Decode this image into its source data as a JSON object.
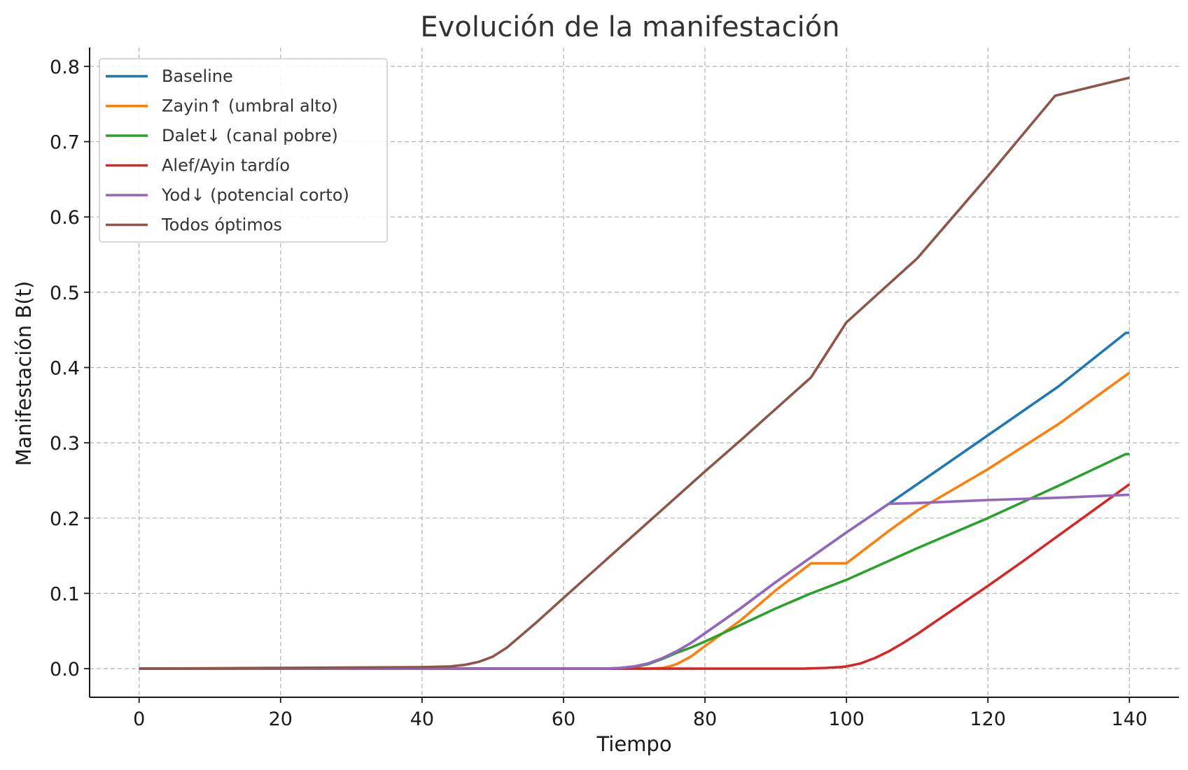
{
  "chart_data": {
    "type": "line",
    "title": "Evolución de la manifestación",
    "xlabel": "Tiempo",
    "ylabel": "Manifestación B(t)",
    "xlim": [
      -7,
      147
    ],
    "ylim": [
      -0.038,
      0.825
    ],
    "xticks": [
      0,
      20,
      40,
      60,
      80,
      100,
      120,
      140
    ],
    "yticks": [
      0.0,
      0.1,
      0.2,
      0.3,
      0.4,
      0.5,
      0.6,
      0.7,
      0.8
    ],
    "grid": true,
    "legend": "top-left",
    "series": [
      {
        "name": "Baseline",
        "color": "#1f77b4",
        "points": [
          [
            0,
            0
          ],
          [
            40,
            0
          ],
          [
            60,
            0
          ],
          [
            66,
            0
          ],
          [
            68,
            0.001
          ],
          [
            70,
            0.003
          ],
          [
            72,
            0.007
          ],
          [
            74,
            0.014
          ],
          [
            76,
            0.023
          ],
          [
            78,
            0.034
          ],
          [
            80,
            0.047
          ],
          [
            85,
            0.08
          ],
          [
            90,
            0.115
          ],
          [
            95,
            0.148
          ],
          [
            100,
            0.181
          ],
          [
            106,
            0.219
          ],
          [
            110,
            0.245
          ],
          [
            120,
            0.31
          ],
          [
            130,
            0.375
          ],
          [
            139.5,
            0.446
          ],
          [
            140,
            0.446
          ]
        ]
      },
      {
        "name": "Zayin↑ (umbral alto)",
        "color": "#ff7f0e",
        "points": [
          [
            0,
            0
          ],
          [
            60,
            0
          ],
          [
            72,
            0
          ],
          [
            74,
            0.001
          ],
          [
            75,
            0.003
          ],
          [
            76,
            0.006
          ],
          [
            78,
            0.016
          ],
          [
            80,
            0.03
          ],
          [
            85,
            0.064
          ],
          [
            90,
            0.104
          ],
          [
            95,
            0.14
          ],
          [
            100,
            0.14
          ],
          [
            100,
            0.14
          ],
          [
            106,
            0.183
          ],
          [
            110,
            0.21
          ],
          [
            120,
            0.265
          ],
          [
            130,
            0.325
          ],
          [
            140,
            0.393
          ]
        ]
      },
      {
        "name": "Dalet↓ (canal pobre)",
        "color": "#2ca02c",
        "points": [
          [
            0,
            0
          ],
          [
            60,
            0
          ],
          [
            68,
            0
          ],
          [
            70,
            0.002
          ],
          [
            72,
            0.006
          ],
          [
            74,
            0.013
          ],
          [
            76,
            0.021
          ],
          [
            78,
            0.028
          ],
          [
            80,
            0.036
          ],
          [
            85,
            0.058
          ],
          [
            90,
            0.08
          ],
          [
            95,
            0.1
          ],
          [
            100,
            0.118
          ],
          [
            110,
            0.16
          ],
          [
            120,
            0.2
          ],
          [
            130,
            0.243
          ],
          [
            139.5,
            0.285
          ],
          [
            140,
            0.285
          ]
        ]
      },
      {
        "name": "Alef/Ayin tardío",
        "color": "#d62728",
        "points": [
          [
            0,
            0
          ],
          [
            60,
            0
          ],
          [
            94,
            0
          ],
          [
            97,
            0.001
          ],
          [
            99,
            0.002
          ],
          [
            100,
            0.003
          ],
          [
            102,
            0.007
          ],
          [
            104,
            0.014
          ],
          [
            106,
            0.023
          ],
          [
            108,
            0.034
          ],
          [
            110,
            0.046
          ],
          [
            115,
            0.078
          ],
          [
            120,
            0.11
          ],
          [
            125,
            0.143
          ],
          [
            130,
            0.177
          ],
          [
            135,
            0.211
          ],
          [
            140,
            0.245
          ]
        ]
      },
      {
        "name": "Yod↓ (potencial corto)",
        "color": "#9467bd",
        "points": [
          [
            0,
            0
          ],
          [
            40,
            0
          ],
          [
            60,
            0
          ],
          [
            66,
            0
          ],
          [
            68,
            0.001
          ],
          [
            70,
            0.003
          ],
          [
            72,
            0.007
          ],
          [
            74,
            0.014
          ],
          [
            76,
            0.023
          ],
          [
            78,
            0.034
          ],
          [
            80,
            0.047
          ],
          [
            85,
            0.08
          ],
          [
            90,
            0.115
          ],
          [
            95,
            0.148
          ],
          [
            100,
            0.181
          ],
          [
            106,
            0.219
          ],
          [
            110,
            0.22
          ],
          [
            120,
            0.224
          ],
          [
            130,
            0.227
          ],
          [
            140,
            0.231
          ]
        ]
      },
      {
        "name": "Todos óptimos",
        "color": "#8c564b",
        "points": [
          [
            0,
            0
          ],
          [
            20,
            0.001
          ],
          [
            40,
            0.002
          ],
          [
            44,
            0.003
          ],
          [
            46,
            0.005
          ],
          [
            48,
            0.009
          ],
          [
            50,
            0.016
          ],
          [
            52,
            0.028
          ],
          [
            54,
            0.044
          ],
          [
            56,
            0.06
          ],
          [
            58,
            0.077
          ],
          [
            60,
            0.094
          ],
          [
            65,
            0.136
          ],
          [
            70,
            0.178
          ],
          [
            75,
            0.22
          ],
          [
            80,
            0.262
          ],
          [
            85,
            0.303
          ],
          [
            90,
            0.345
          ],
          [
            95,
            0.387
          ],
          [
            100,
            0.46
          ],
          [
            110,
            0.545
          ],
          [
            120,
            0.654
          ],
          [
            129.5,
            0.761
          ],
          [
            140,
            0.785
          ]
        ]
      }
    ]
  }
}
